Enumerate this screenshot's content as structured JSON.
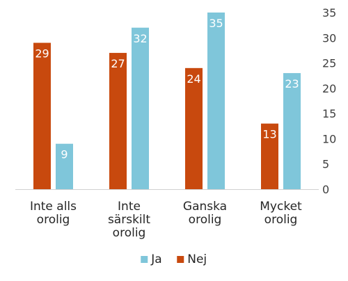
{
  "chart_data": {
    "type": "bar",
    "categories": [
      [
        "Inte alls",
        "orolig"
      ],
      [
        "Inte",
        "särskilt",
        "orolig"
      ],
      [
        "Ganska",
        "orolig"
      ],
      [
        "Mycket",
        "orolig"
      ]
    ],
    "series": [
      {
        "name": "Nej",
        "color": "#c8490e",
        "label_color": "#ffffff",
        "values": [
          29,
          27,
          24,
          13
        ]
      },
      {
        "name": "Ja",
        "color": "#7fc6da",
        "label_color": "#262626",
        "values": [
          9,
          32,
          35,
          23
        ]
      }
    ],
    "y_ticks": [
      0,
      5,
      10,
      15,
      20,
      25,
      30,
      35
    ],
    "ylim": [
      0,
      35
    ],
    "y_axis_side": "right",
    "grid": false,
    "legend": {
      "placement": "bottom-center",
      "order": [
        "Ja",
        "Nej"
      ]
    },
    "title": "",
    "xlabel": "",
    "ylabel": ""
  }
}
